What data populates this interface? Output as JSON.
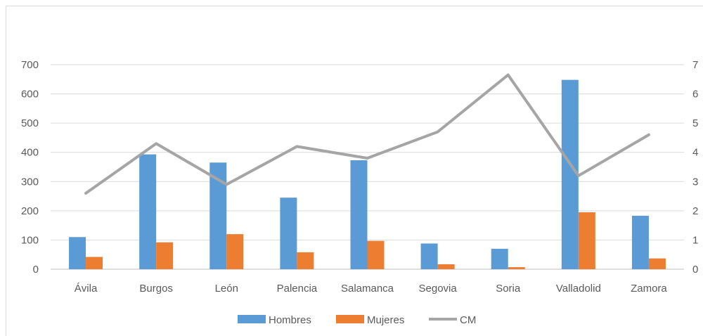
{
  "chart_data": {
    "type": "bar",
    "categories": [
      "Ávila",
      "Burgos",
      "León",
      "Palencia",
      "Salamanca",
      "Segovia",
      "Soria",
      "Valladolid",
      "Zamora"
    ],
    "series": [
      {
        "name": "Hombres",
        "type": "bar",
        "axis": "left",
        "color": "#5b9bd5",
        "values": [
          110,
          393,
          365,
          245,
          373,
          88,
          70,
          648,
          183
        ]
      },
      {
        "name": "Mujeres",
        "type": "bar",
        "axis": "left",
        "color": "#ed7d31",
        "values": [
          42,
          92,
          120,
          58,
          97,
          17,
          7,
          195,
          37
        ]
      },
      {
        "name": "CM",
        "type": "line",
        "axis": "right",
        "color": "#a5a5a5",
        "values": [
          2.6,
          4.3,
          2.9,
          4.2,
          3.8,
          4.7,
          6.65,
          3.2,
          4.6
        ]
      }
    ],
    "ylim": [
      0,
      700
    ],
    "y2lim": [
      0,
      7
    ],
    "yticks": [
      "0",
      "100",
      "200",
      "300",
      "400",
      "500",
      "600",
      "700"
    ],
    "y2ticks": [
      "0",
      "1",
      "2",
      "3",
      "4",
      "5",
      "6",
      "7"
    ],
    "grid": true,
    "legend_position": "bottom",
    "title": "",
    "xlabel": "",
    "ylabel": ""
  }
}
